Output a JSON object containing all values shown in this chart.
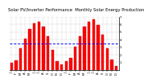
{
  "title": "Monthly Solar Energy Production",
  "subtitle": "Solar PV/Inverter Performance",
  "bar_color": "#ff0000",
  "bar_edge_color": "#cc0000",
  "avg_line_color": "#0000ff",
  "avg_value": 3.5,
  "background_color": "#ffffff",
  "grid_color": "#999999",
  "ylim": [
    0,
    7
  ],
  "yticks": [
    1,
    2,
    3,
    4,
    5,
    6,
    7
  ],
  "month_labels": [
    "J",
    "F",
    "M",
    "A",
    "M",
    "J",
    "J",
    "A",
    "S",
    "O",
    "N",
    "D",
    "J",
    "F",
    "M",
    "A",
    "M",
    "J",
    "J",
    "A",
    "S",
    "O",
    "N",
    "D"
  ],
  "values": [
    0.9,
    1.3,
    2.8,
    4.1,
    5.4,
    6.1,
    6.4,
    5.7,
    4.4,
    2.6,
    1.2,
    0.7,
    1.1,
    1.6,
    3.1,
    4.4,
    5.7,
    6.3,
    6.7,
    5.9,
    4.7,
    2.9,
    1.4,
    0.5
  ],
  "title_fontsize": 3.8,
  "tick_fontsize": 2.8
}
